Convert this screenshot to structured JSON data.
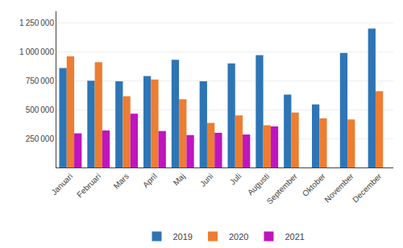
{
  "chart_data": {
    "type": "bar",
    "categories": [
      "Januari",
      "Februari",
      "Mars",
      "April",
      "Maj",
      "Juni",
      "Juli",
      "Augusti",
      "September",
      "Oktober",
      "November",
      "December"
    ],
    "series": [
      {
        "name": "2019",
        "color": "#2E75B6",
        "values": [
          860000,
          750000,
          745000,
          790000,
          930000,
          745000,
          900000,
          970000,
          630000,
          545000,
          990000,
          1200000
        ]
      },
      {
        "name": "2020",
        "color": "#ED7D31",
        "values": [
          960000,
          910000,
          615000,
          760000,
          590000,
          385000,
          450000,
          365000,
          475000,
          425000,
          415000,
          660000
        ]
      },
      {
        "name": "2021",
        "color": "#BE15BE",
        "values": [
          295000,
          320000,
          465000,
          315000,
          280000,
          300000,
          285000,
          355000,
          0,
          0,
          0,
          0
        ]
      }
    ],
    "ylim": [
      0,
      1350000
    ],
    "yticks": [
      {
        "value": 250000,
        "label": "250 000"
      },
      {
        "value": 500000,
        "label": "500 000"
      },
      {
        "value": 750000,
        "label": "750 000"
      },
      {
        "value": 1000000,
        "label": "1 000 000"
      },
      {
        "value": 1250000,
        "label": "1 250 000"
      }
    ],
    "grid": true,
    "legend": "bottom"
  }
}
